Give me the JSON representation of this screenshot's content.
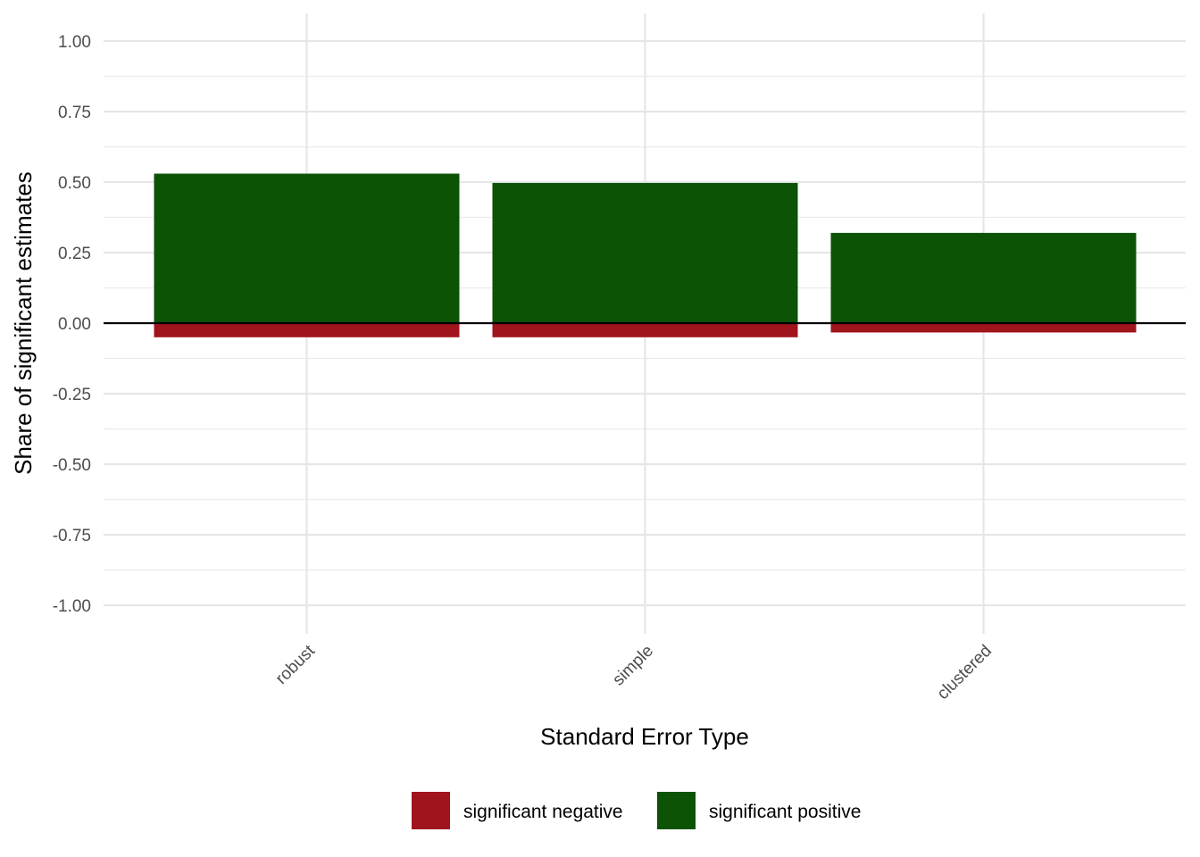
{
  "chart_data": {
    "type": "bar",
    "categories": [
      "robust",
      "simple",
      "clustered"
    ],
    "series": [
      {
        "name": "significant positive",
        "values": [
          0.53,
          0.497,
          0.32
        ],
        "color": "#0c5306"
      },
      {
        "name": "significant negative",
        "values": [
          -0.05,
          -0.05,
          -0.033
        ],
        "color": "#a0141d"
      }
    ],
    "xlabel": "Standard Error Type",
    "ylabel": "Share of significant estimates",
    "ylim": [
      -1.1,
      1.1
    ],
    "yticks": [
      1.0,
      0.75,
      0.5,
      0.25,
      0.0,
      -0.25,
      -0.5,
      -0.75,
      -1.0
    ],
    "ytick_labels": [
      "1.00",
      "0.75",
      "0.50",
      "0.25",
      "0.00",
      "-0.25",
      "-0.50",
      "-0.75",
      "-1.00"
    ],
    "grid": true,
    "legend": {
      "position": "bottom",
      "entries": [
        {
          "label": "significant negative",
          "color": "#a0141d"
        },
        {
          "label": "significant positive",
          "color": "#0c5306"
        }
      ]
    },
    "x_tick_rotation": "45deg",
    "zero_line": true
  }
}
